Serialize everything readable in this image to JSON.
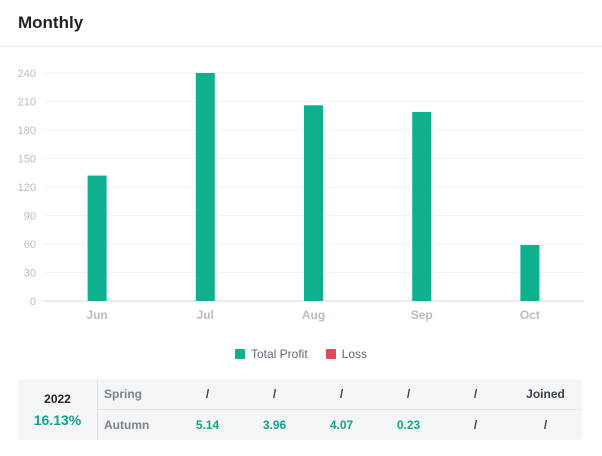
{
  "header": {
    "title": "Monthly"
  },
  "colors": {
    "profit": "#0fb08e",
    "loss": "#e5485b",
    "positive_text": "#12a487"
  },
  "chart_data": {
    "type": "bar",
    "categories": [
      "Jun",
      "Jul",
      "Aug",
      "Sep",
      "Oct"
    ],
    "series": [
      {
        "name": "Total Profit",
        "values": [
          132,
          240,
          206,
          199,
          59
        ]
      },
      {
        "name": "Loss",
        "values": [
          0,
          0,
          0,
          0,
          0
        ]
      }
    ],
    "yticks": [
      0,
      30,
      60,
      90,
      120,
      150,
      180,
      210,
      240
    ],
    "ylim": [
      0,
      260
    ],
    "grid": true,
    "legend": "bottom-center"
  },
  "legend": {
    "items": [
      "Total Profit",
      "Loss"
    ]
  },
  "summary": {
    "year": "2022",
    "ytd": "16.13%",
    "rows": [
      {
        "name": "Spring",
        "values": [
          "/",
          "/",
          "/",
          "/",
          "/",
          "Joined"
        ]
      },
      {
        "name": "Autumn",
        "values": [
          "5.14",
          "3.96",
          "4.07",
          "0.23",
          "/",
          "/"
        ]
      }
    ]
  }
}
